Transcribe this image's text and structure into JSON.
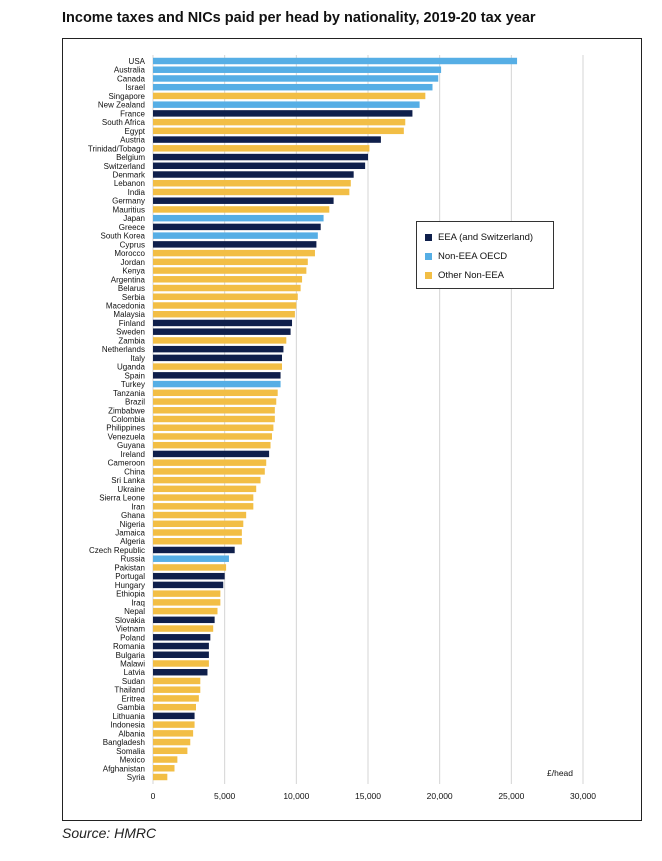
{
  "title": "Income taxes and NICs paid per head by nationality, 2019-20 tax year",
  "source": "Source: HMRC",
  "colors": {
    "EEA (and Switzerland)": "#0f1f4b",
    "Non-EEA OECD": "#56aee5",
    "Other Non-EEA": "#f2be45"
  },
  "chart_data": {
    "type": "bar",
    "orientation": "horizontal",
    "title": "Income taxes and NICs paid per head by nationality, 2019-20 tax year",
    "xlabel": "£/head",
    "xlim": [
      0,
      30000
    ],
    "xticks": [
      0,
      5000,
      10000,
      15000,
      20000,
      25000,
      30000
    ],
    "xtick_labels": [
      "0",
      "5,000",
      "10,000",
      "15,000",
      "20,000",
      "25,000",
      "30,000"
    ],
    "grid": "vertical",
    "legend": {
      "position": "right",
      "entries": [
        "EEA (and Switzerland)",
        "Non-EEA OECD",
        "Other Non-EEA"
      ]
    },
    "categories": [
      "USA",
      "Australia",
      "Canada",
      "Israel",
      "Singapore",
      "New Zealand",
      "France",
      "South Africa",
      "Egypt",
      "Austria",
      "Trinidad/Tobago",
      "Belgium",
      "Switzerland",
      "Denmark",
      "Lebanon",
      "India",
      "Germany",
      "Mauritius",
      "Japan",
      "Greece",
      "South Korea",
      "Cyprus",
      "Morocco",
      "Jordan",
      "Kenya",
      "Argentina",
      "Belarus",
      "Serbia",
      "Macedonia",
      "Malaysia",
      "Finland",
      "Sweden",
      "Zambia",
      "Netherlands",
      "Italy",
      "Uganda",
      "Spain",
      "Turkey",
      "Tanzania",
      "Brazil",
      "Zimbabwe",
      "Colombia",
      "Philippines",
      "Venezuela",
      "Guyana",
      "Ireland",
      "Cameroon",
      "China",
      "Sri Lanka",
      "Ukraine",
      "Sierra Leone",
      "Iran",
      "Ghana",
      "Nigeria",
      "Jamaica",
      "Algeria",
      "Czech Republic",
      "Russia",
      "Pakistan",
      "Portugal",
      "Hungary",
      "Ethiopia",
      "Iraq",
      "Nepal",
      "Slovakia",
      "Vietnam",
      "Poland",
      "Romania",
      "Bulgaria",
      "Malawi",
      "Latvia",
      "Sudan",
      "Thailand",
      "Eritrea",
      "Gambia",
      "Lithuania",
      "Indonesia",
      "Albania",
      "Bangladesh",
      "Somalia",
      "Mexico",
      "Afghanistan",
      "Syria"
    ],
    "values": [
      25400,
      20100,
      19900,
      19500,
      19000,
      18600,
      18100,
      17600,
      17500,
      15900,
      15100,
      15000,
      14800,
      14000,
      13800,
      13700,
      12600,
      12300,
      11900,
      11700,
      11500,
      11400,
      11300,
      10800,
      10700,
      10400,
      10300,
      10100,
      10000,
      9900,
      9700,
      9600,
      9300,
      9100,
      9000,
      9000,
      8900,
      8900,
      8700,
      8600,
      8500,
      8500,
      8400,
      8300,
      8200,
      8100,
      7900,
      7800,
      7500,
      7200,
      7000,
      7000,
      6500,
      6300,
      6200,
      6200,
      5700,
      5300,
      5100,
      5000,
      4900,
      4700,
      4700,
      4500,
      4300,
      4200,
      4000,
      3900,
      3900,
      3900,
      3800,
      3300,
      3300,
      3200,
      3000,
      2900,
      2900,
      2800,
      2600,
      2400,
      1700,
      1500,
      1000
    ],
    "groups": [
      "Non-EEA OECD",
      "Non-EEA OECD",
      "Non-EEA OECD",
      "Non-EEA OECD",
      "Other Non-EEA",
      "Non-EEA OECD",
      "EEA (and Switzerland)",
      "Other Non-EEA",
      "Other Non-EEA",
      "EEA (and Switzerland)",
      "Other Non-EEA",
      "EEA (and Switzerland)",
      "EEA (and Switzerland)",
      "EEA (and Switzerland)",
      "Other Non-EEA",
      "Other Non-EEA",
      "EEA (and Switzerland)",
      "Other Non-EEA",
      "Non-EEA OECD",
      "EEA (and Switzerland)",
      "Non-EEA OECD",
      "EEA (and Switzerland)",
      "Other Non-EEA",
      "Other Non-EEA",
      "Other Non-EEA",
      "Other Non-EEA",
      "Other Non-EEA",
      "Other Non-EEA",
      "Other Non-EEA",
      "Other Non-EEA",
      "EEA (and Switzerland)",
      "EEA (and Switzerland)",
      "Other Non-EEA",
      "EEA (and Switzerland)",
      "EEA (and Switzerland)",
      "Other Non-EEA",
      "EEA (and Switzerland)",
      "Non-EEA OECD",
      "Other Non-EEA",
      "Other Non-EEA",
      "Other Non-EEA",
      "Other Non-EEA",
      "Other Non-EEA",
      "Other Non-EEA",
      "Other Non-EEA",
      "EEA (and Switzerland)",
      "Other Non-EEA",
      "Other Non-EEA",
      "Other Non-EEA",
      "Other Non-EEA",
      "Other Non-EEA",
      "Other Non-EEA",
      "Other Non-EEA",
      "Other Non-EEA",
      "Other Non-EEA",
      "Other Non-EEA",
      "EEA (and Switzerland)",
      "Non-EEA OECD",
      "Other Non-EEA",
      "EEA (and Switzerland)",
      "EEA (and Switzerland)",
      "Other Non-EEA",
      "Other Non-EEA",
      "Other Non-EEA",
      "EEA (and Switzerland)",
      "Other Non-EEA",
      "EEA (and Switzerland)",
      "EEA (and Switzerland)",
      "EEA (and Switzerland)",
      "Other Non-EEA",
      "EEA (and Switzerland)",
      "Other Non-EEA",
      "Other Non-EEA",
      "Other Non-EEA",
      "Other Non-EEA",
      "EEA (and Switzerland)",
      "Other Non-EEA",
      "Other Non-EEA",
      "Other Non-EEA",
      "Other Non-EEA",
      "Other Non-EEA",
      "Other Non-EEA",
      "Other Non-EEA"
    ]
  }
}
